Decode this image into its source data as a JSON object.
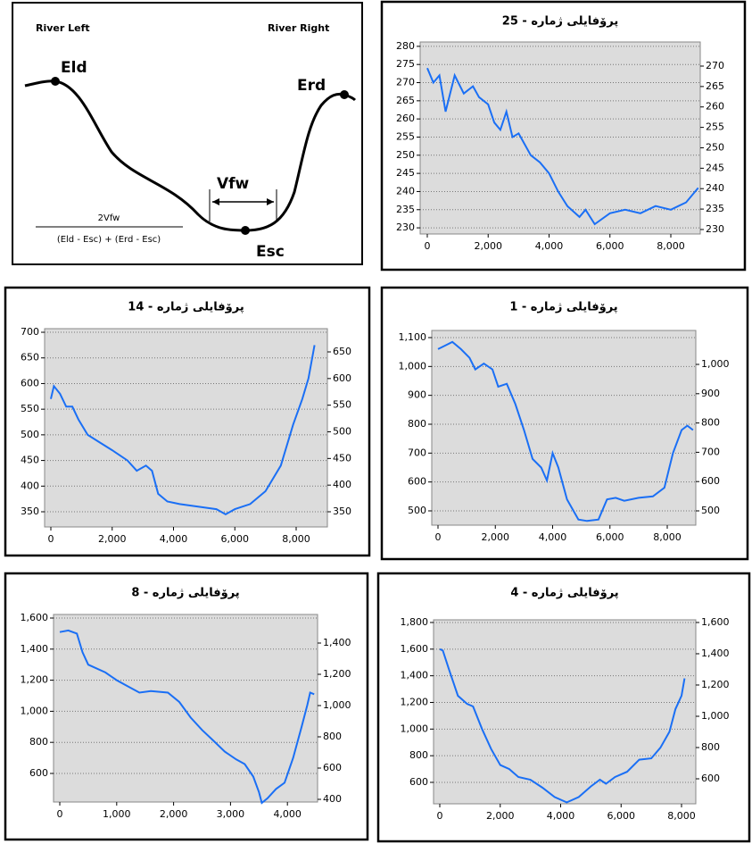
{
  "diagram": {
    "river_left": "River Left",
    "river_right": "River Right",
    "eld": "Eld",
    "erd": "Erd",
    "vfw": "Vfw",
    "esc": "Esc",
    "numerator": "2Vfw",
    "denominator": "(Eld - Esc) + (Erd - Esc)"
  },
  "chart_data": [
    {
      "type": "line",
      "title": "پرۆفایلی ژمارە - 25",
      "x": [
        0,
        200,
        400,
        600,
        900,
        1200,
        1500,
        1700,
        2000,
        2200,
        2400,
        2600,
        2800,
        3000,
        3200,
        3400,
        3700,
        4000,
        4300,
        4600,
        5000,
        5200,
        5500,
        6000,
        6500,
        7000,
        7500,
        8000,
        8500,
        8900
      ],
      "series": [
        {
          "color": "#1a6ff5",
          "values": [
            274,
            270,
            272,
            262,
            272,
            267,
            269,
            266,
            264,
            259,
            257,
            262,
            255,
            256,
            253,
            250,
            248,
            245,
            240,
            236,
            233,
            235,
            231,
            234,
            235,
            234,
            236,
            235,
            237,
            241
          ]
        }
      ],
      "xlim": [
        -234,
        8967
      ],
      "xticks": [
        0,
        {
          "value": 2000,
          "label": "2,000"
        },
        {
          "value": 4000,
          "label": "4,000"
        },
        {
          "value": 6000,
          "label": "6,000"
        },
        {
          "value": 8000,
          "label": "8,000"
        }
      ],
      "ylim": [
        228.3,
        281.2
      ],
      "yticks": [
        230,
        235,
        240,
        245,
        250,
        255,
        260,
        265,
        270,
        275,
        280
      ],
      "y2lim": [
        228.9,
        275.9
      ],
      "y2ticks": [
        230,
        235,
        240,
        245,
        250,
        255,
        260,
        265,
        270
      ],
      "grid": true
    },
    {
      "type": "line",
      "title": "پرۆفایلی ژمارە - 14",
      "x": [
        0,
        100,
        300,
        500,
        700,
        900,
        1200,
        1600,
        2000,
        2500,
        2800,
        3100,
        3300,
        3500,
        3800,
        4200,
        4800,
        5400,
        5700,
        6000,
        6500,
        7000,
        7500,
        7900,
        8200,
        8400,
        8600
      ],
      "series": [
        {
          "color": "#1a6ff5",
          "values": [
            570,
            595,
            580,
            555,
            555,
            530,
            500,
            485,
            470,
            450,
            430,
            440,
            430,
            385,
            370,
            365,
            360,
            355,
            345,
            355,
            365,
            390,
            440,
            520,
            570,
            610,
            675
          ]
        }
      ],
      "xlim": [
        -204,
        9018
      ],
      "xticks": [
        0,
        {
          "value": 2000,
          "label": "2,000"
        },
        {
          "value": 4000,
          "label": "4,000"
        },
        {
          "value": 6000,
          "label": "6,000"
        },
        {
          "value": 8000,
          "label": "8,000"
        }
      ],
      "ylim": [
        320.4,
        707
      ],
      "yticks": [
        350,
        400,
        450,
        500,
        550,
        600,
        650,
        700
      ],
      "y2lim": [
        321.5,
        693.6
      ],
      "y2ticks": [
        350,
        400,
        450,
        500,
        550,
        600,
        650
      ],
      "grid": true
    },
    {
      "type": "line",
      "title": "پرۆفایلی ژمارە - 1",
      "x": [
        0,
        300,
        500,
        800,
        1100,
        1300,
        1600,
        1900,
        2100,
        2400,
        2700,
        3000,
        3300,
        3600,
        3800,
        4000,
        4200,
        4500,
        4900,
        5200,
        5600,
        5900,
        6200,
        6500,
        7000,
        7500,
        7900,
        8200,
        8500,
        8700,
        8900
      ],
      "series": [
        {
          "color": "#1a6ff5",
          "values": [
            1060,
            1075,
            1085,
            1060,
            1030,
            990,
            1010,
            990,
            930,
            940,
            870,
            780,
            680,
            650,
            605,
            700,
            650,
            540,
            470,
            465,
            470,
            540,
            545,
            535,
            545,
            550,
            580,
            700,
            780,
            795,
            780
          ]
        }
      ],
      "xlim": [
        -218,
        8996
      ],
      "xticks": [
        0,
        {
          "value": 2000,
          "label": "2,000"
        },
        {
          "value": 4000,
          "label": "4,000"
        },
        {
          "value": 6000,
          "label": "6,000"
        },
        {
          "value": 8000,
          "label": "8,000"
        }
      ],
      "ylim": [
        450.5,
        1124.7
      ],
      "yticks": [
        500,
        600,
        700,
        800,
        900,
        {
          "value": 1000,
          "label": "1,000"
        },
        {
          "value": 1100,
          "label": "1,100"
        }
      ],
      "y2lim": [
        451.2,
        1115.9
      ],
      "y2ticks": [
        500,
        600,
        700,
        800,
        900,
        {
          "value": 1000,
          "label": "1,000"
        }
      ],
      "grid": true
    },
    {
      "type": "line",
      "title": "پرۆفایلی ژمارە - 8",
      "x": [
        0,
        150,
        300,
        400,
        500,
        800,
        1000,
        1200,
        1400,
        1600,
        1900,
        2100,
        2300,
        2500,
        2700,
        2900,
        3100,
        3250,
        3400,
        3500,
        3550,
        3650,
        3800,
        3950,
        4100,
        4250,
        4350,
        4400,
        4470
      ],
      "series": [
        {
          "color": "#1a6ff5",
          "values": [
            1510,
            1520,
            1500,
            1380,
            1300,
            1250,
            1200,
            1160,
            1120,
            1130,
            1120,
            1060,
            960,
            880,
            810,
            740,
            690,
            660,
            580,
            480,
            410,
            440,
            500,
            540,
            700,
            900,
            1040,
            1120,
            1110
          ]
        }
      ],
      "xlim": [
        -110,
        4530
      ],
      "xticks": [
        0,
        {
          "value": 1000,
          "label": "1,000"
        },
        {
          "value": 2000,
          "label": "2,000"
        },
        {
          "value": 3000,
          "label": "3,000"
        },
        {
          "value": 4000,
          "label": "4,000"
        }
      ],
      "ylim": [
        416,
        1623
      ],
      "yticks": [
        600,
        800,
        {
          "value": 1000,
          "label": "1,000"
        },
        {
          "value": 1200,
          "label": "1,200"
        },
        {
          "value": 1400,
          "label": "1,400"
        },
        {
          "value": 1600,
          "label": "1,600"
        }
      ],
      "y2lim": [
        382.9,
        1582.9
      ],
      "y2ticks": [
        400,
        600,
        800,
        {
          "value": 1000,
          "label": "1,000"
        },
        {
          "value": 1200,
          "label": "1,200"
        },
        {
          "value": 1400,
          "label": "1,400"
        }
      ],
      "grid": true
    },
    {
      "type": "line",
      "title": "پرۆفایلی ژمارە - 4",
      "x": [
        0,
        100,
        300,
        600,
        900,
        1100,
        1400,
        1700,
        2000,
        2300,
        2600,
        3000,
        3400,
        3800,
        4200,
        4600,
        5000,
        5300,
        5500,
        5800,
        6200,
        6600,
        7000,
        7300,
        7600,
        7800,
        8000,
        8100
      ],
      "series": [
        {
          "color": "#1a6ff5",
          "values": [
            1600,
            1590,
            1450,
            1250,
            1190,
            1170,
            1000,
            850,
            730,
            700,
            640,
            620,
            560,
            490,
            450,
            490,
            570,
            620,
            590,
            640,
            680,
            770,
            780,
            860,
            980,
            1150,
            1250,
            1380
          ]
        }
      ],
      "xlim": [
        -207,
        8472
      ],
      "xticks": [
        0,
        {
          "value": 2000,
          "label": "2,000"
        },
        {
          "value": 4000,
          "label": "4,000"
        },
        {
          "value": 6000,
          "label": "6,000"
        },
        {
          "value": 8000,
          "label": "8,000"
        }
      ],
      "ylim": [
        439,
        1820
      ],
      "yticks": [
        600,
        800,
        {
          "value": 1000,
          "label": "1,000"
        },
        {
          "value": 1200,
          "label": "1,200"
        },
        {
          "value": 1400,
          "label": "1,400"
        },
        {
          "value": 1600,
          "label": "1,600"
        },
        {
          "value": 1800,
          "label": "1,800"
        }
      ],
      "y2lim": [
        440,
        1617
      ],
      "y2ticks": [
        600,
        800,
        {
          "value": 1000,
          "label": "1,000"
        },
        {
          "value": 1200,
          "label": "1,200"
        },
        {
          "value": 1400,
          "label": "1,400"
        },
        {
          "value": 1600,
          "label": "1,600"
        }
      ],
      "grid": true
    }
  ]
}
